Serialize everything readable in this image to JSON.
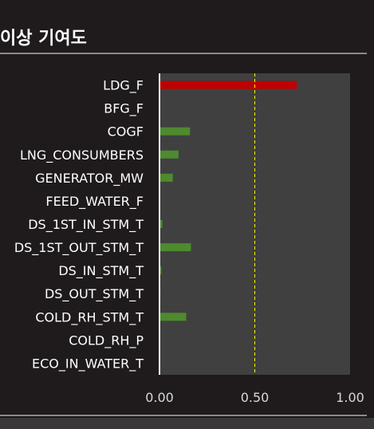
{
  "page": {
    "title": "이상 기여도"
  },
  "colors": {
    "background": "#1f1b1c",
    "plot_area": "#404040",
    "highlight_bar": "#c00000",
    "normal_bar": "#4e8a2e",
    "threshold_line": "#ffff00"
  },
  "chart_data": {
    "type": "bar",
    "orientation": "horizontal",
    "title": "이상 기여도",
    "categories": [
      "LDG_F",
      "BFG_F",
      "COGF",
      "LNG_CONSUMBERS",
      "GENERATOR_MW",
      "FEED_WATER_F",
      "DS_1ST_IN_STM_T",
      "DS_1ST_OUT_STM_T",
      "DS_IN_STM_T",
      "DS_OUT_STM_T",
      "COLD_RH_STM_T",
      "COLD_RH_P",
      "ECO_IN_WATER_T"
    ],
    "values": [
      0.72,
      0.0,
      0.16,
      0.1,
      0.07,
      0.0,
      0.015,
      0.165,
      0.01,
      0.005,
      0.14,
      0.0,
      0.0
    ],
    "xlim": [
      0,
      1
    ],
    "xticks": [
      "0.00",
      "0.50",
      "1.00"
    ],
    "threshold": 0.5,
    "highlighted": [
      "LDG_F"
    ]
  }
}
